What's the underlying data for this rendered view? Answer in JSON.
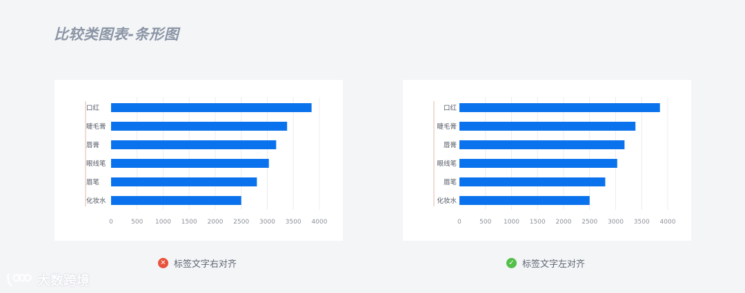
{
  "title": "比较类图表-条形图",
  "chart_data": [
    {
      "type": "bar",
      "orientation": "horizontal",
      "label_align": "right",
      "categories": [
        "口红",
        "睫毛膏",
        "唇膏",
        "眼线笔",
        "眉笔",
        "化妆水"
      ],
      "values": [
        3850,
        3380,
        3170,
        3030,
        2800,
        2500
      ],
      "xlim": [
        0,
        4000
      ],
      "xticks": [
        0,
        500,
        1000,
        1500,
        2000,
        2500,
        3000,
        3500,
        4000
      ],
      "grid": true
    },
    {
      "type": "bar",
      "orientation": "horizontal",
      "label_align": "left",
      "categories": [
        "口红",
        "睫毛膏",
        "唇膏",
        "眼线笔",
        "眉笔",
        "化妆水"
      ],
      "values": [
        3850,
        3380,
        3170,
        3030,
        2800,
        2500
      ],
      "xlim": [
        0,
        4000
      ],
      "xticks": [
        0,
        500,
        1000,
        1500,
        2000,
        2500,
        3000,
        3500,
        4000
      ],
      "grid": true
    }
  ],
  "colors": {
    "bar": "#0a72ec",
    "grid": "#ececec",
    "axis_left": "#e0b9a8",
    "tick_label": "#8a8f98",
    "bad": "#e8533b",
    "good": "#52c04a"
  },
  "captions": {
    "left": {
      "icon": "x-icon",
      "text": "标签文字右对齐"
    },
    "right": {
      "icon": "check-icon",
      "text": "标签文字左对齐"
    }
  },
  "watermark": {
    "text": "大数跨境"
  }
}
